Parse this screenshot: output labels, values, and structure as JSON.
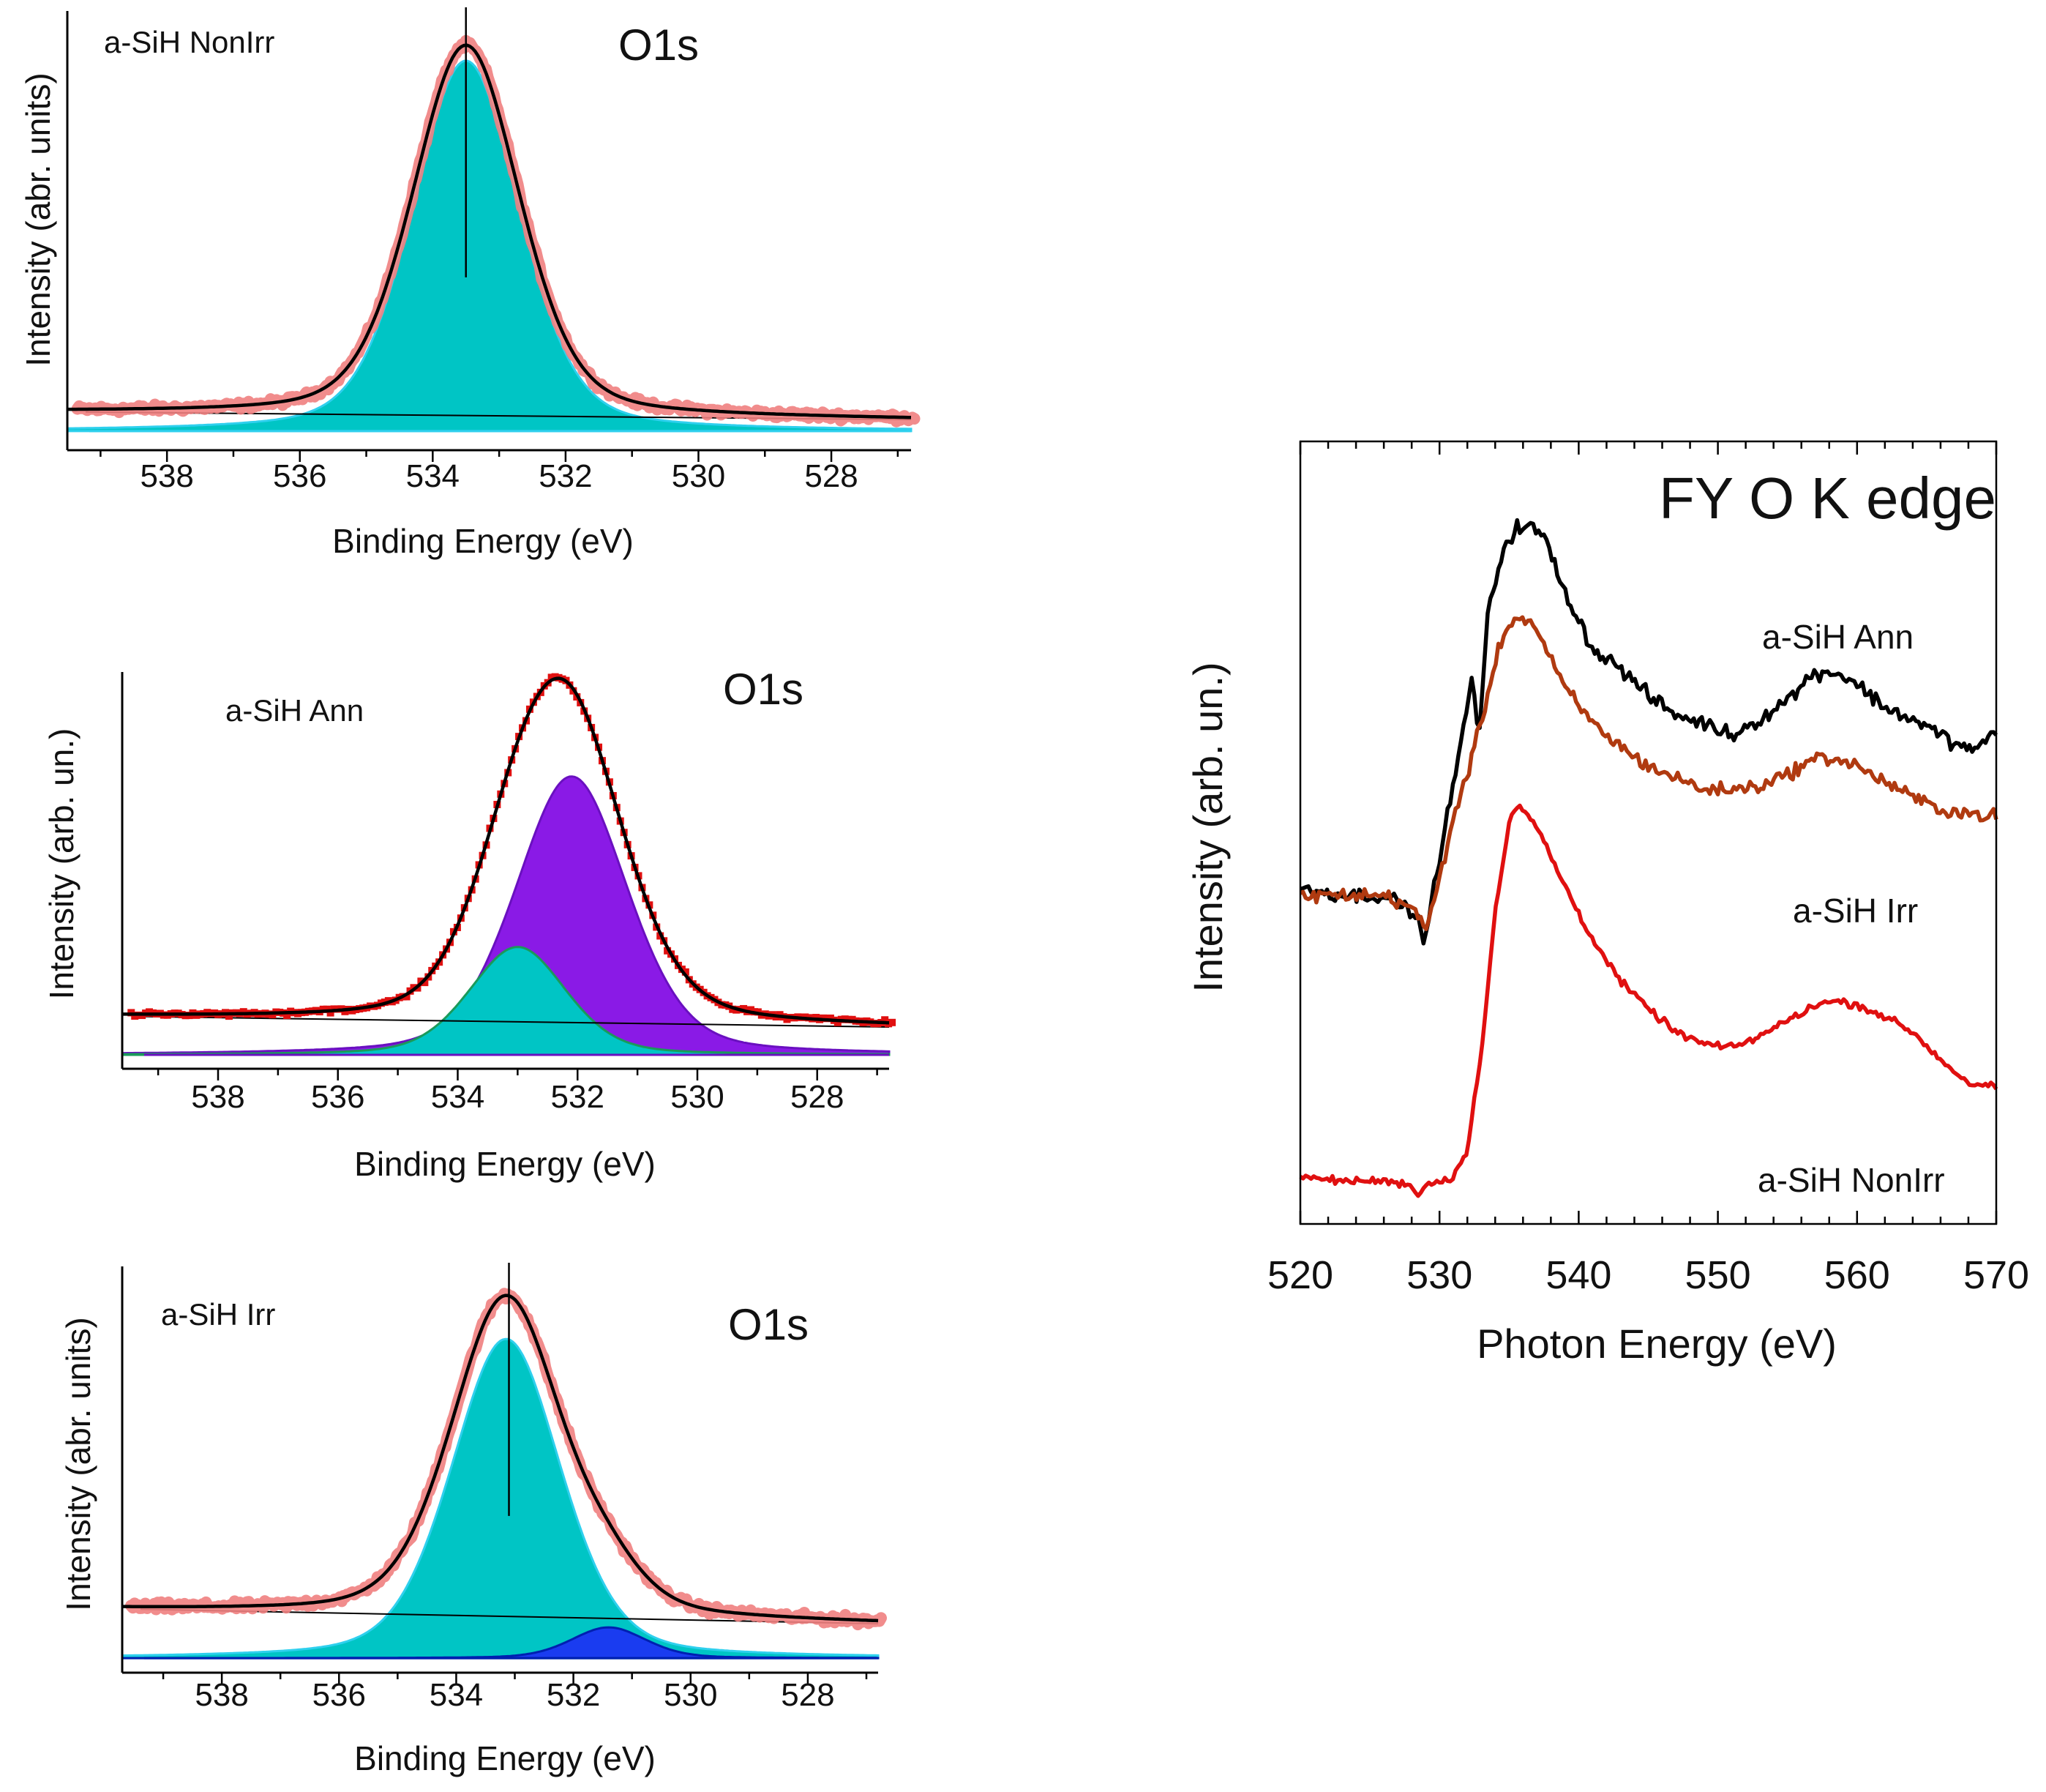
{
  "chart_data": [
    {
      "type": "line",
      "panel": "xps-nonirr",
      "title": "O1s",
      "sample": "a-SiH NonIrr",
      "xlabel": "Binding Energy (eV)",
      "ylabel": "Intensity (abr. units)",
      "xlim": [
        539.5,
        526.8
      ],
      "x_reversed": true,
      "ylim": [
        -0.05,
        1.1
      ],
      "xticks": [
        538,
        536,
        534,
        532,
        530,
        528
      ],
      "marker_line_x": 533.5,
      "background": {
        "y_left": 0.05,
        "y_right": 0.03
      },
      "components": [
        {
          "name": "O1s component",
          "center": 533.5,
          "fwhm": 1.9,
          "height": 0.97,
          "color": "#00c5c5",
          "edge": "#2fd0ee"
        }
      ],
      "fit_color": "#000000",
      "data_color": "#f08080",
      "data_noise": 0.014
    },
    {
      "type": "line",
      "panel": "xps-ann",
      "title": "O1s",
      "sample": "a-SiH Ann",
      "xlabel": "Binding Energy (eV)",
      "ylabel": "Intensity (arb. un.)",
      "xlim": [
        539.6,
        526.8
      ],
      "x_reversed": true,
      "ylim": [
        -0.04,
        1.1
      ],
      "xticks": [
        538,
        536,
        534,
        532,
        530,
        528
      ],
      "background": {
        "y_left": 0.11,
        "y_right": 0.08
      },
      "components": [
        {
          "name": "component 1",
          "center": 533.0,
          "fwhm": 1.9,
          "height": 0.31,
          "color": "#00c5c5",
          "edge": "#1a9a5a"
        },
        {
          "name": "component 2",
          "center": 532.1,
          "fwhm": 2.2,
          "height": 0.8,
          "color": "#8a1ae6",
          "edge": "#6a10c0"
        }
      ],
      "fit_color": "#000000",
      "data_color": "#e01010",
      "data_noise": 0.011
    },
    {
      "type": "line",
      "panel": "xps-irr",
      "title": "O1s",
      "sample": "a-SiH Irr",
      "xlabel": "Binding Energy (eV)",
      "ylabel": "Intensity (abr. units)",
      "xlim": [
        539.7,
        526.8
      ],
      "x_reversed": true,
      "ylim": [
        -0.04,
        1.08
      ],
      "xticks": [
        538,
        536,
        534,
        532,
        530,
        528
      ],
      "marker_line_x": 533.1,
      "background": {
        "y_left": 0.135,
        "y_right": 0.095
      },
      "components": [
        {
          "name": "component 1",
          "center": 533.15,
          "fwhm": 2.2,
          "height": 0.88,
          "color": "#00c5c5",
          "edge": "#2fd0ee"
        },
        {
          "name": "component 2",
          "center": 531.4,
          "fwhm": 1.5,
          "height": 0.085,
          "color": "#1a3cf0",
          "edge": "#0020b0"
        }
      ],
      "fit_color": "#000000",
      "data_color": "#f08080",
      "data_noise": 0.016
    },
    {
      "type": "line",
      "panel": "fy-o-k-edge",
      "title": "FY O K edge",
      "xlabel": "Photon Energy (eV)",
      "ylabel": "Intensity (arb. un.)",
      "xlim": [
        520,
        570
      ],
      "ylim": [
        0,
        10
      ],
      "xticks": [
        520,
        530,
        540,
        550,
        560,
        570
      ],
      "series": [
        {
          "name": "a-SiH Ann",
          "color": "#000000",
          "noise": 0.14,
          "x": [
            520,
            523,
            526,
            528,
            529,
            530,
            531,
            531.7,
            532.3,
            532.8,
            533.5,
            534.5,
            535.5,
            536.5,
            537.5,
            538.5,
            539.5,
            541,
            543,
            545,
            547,
            549,
            551,
            553,
            555,
            557,
            558.5,
            560,
            562,
            564,
            566,
            568,
            570
          ],
          "y": [
            4.3,
            4.2,
            4.2,
            4.0,
            3.65,
            4.7,
            5.6,
            6.3,
            7.0,
            6.2,
            7.8,
            8.6,
            8.9,
            8.9,
            8.8,
            8.3,
            7.9,
            7.35,
            7.1,
            6.75,
            6.5,
            6.4,
            6.25,
            6.45,
            6.7,
            7.05,
            7.05,
            6.9,
            6.6,
            6.45,
            6.25,
            6.05,
            6.25
          ]
        },
        {
          "name": "a-SiH Irr",
          "color": "#b03a10",
          "noise": 0.13,
          "x": [
            520,
            523,
            526,
            528,
            529,
            530,
            531,
            532,
            533,
            534,
            535,
            536,
            537,
            538,
            539,
            541,
            543,
            545,
            547,
            549,
            551,
            553,
            555,
            557,
            558.5,
            560,
            562,
            564,
            566,
            568,
            570
          ],
          "y": [
            4.2,
            4.2,
            4.2,
            4.05,
            3.75,
            4.4,
            5.2,
            5.75,
            6.4,
            7.2,
            7.7,
            7.75,
            7.6,
            7.2,
            6.85,
            6.4,
            6.1,
            5.85,
            5.7,
            5.55,
            5.55,
            5.6,
            5.75,
            5.95,
            5.95,
            5.85,
            5.65,
            5.45,
            5.3,
            5.25,
            5.2
          ]
        },
        {
          "name": "a-SiH NonIrr",
          "color": "#e01010",
          "noise": 0.07,
          "x": [
            520,
            523,
            526,
            528,
            528.5,
            529,
            530,
            531,
            532,
            533,
            534,
            535,
            535.5,
            536.5,
            537.5,
            538.5,
            539.5,
            540.5,
            541.5,
            543,
            545,
            547,
            549,
            551,
            553,
            555,
            557,
            558.5,
            560,
            562,
            564,
            566,
            568,
            570
          ],
          "y": [
            0.6,
            0.55,
            0.55,
            0.5,
            0.35,
            0.5,
            0.55,
            0.6,
            0.95,
            2.2,
            4.0,
            5.1,
            5.35,
            5.2,
            4.9,
            4.5,
            4.15,
            3.8,
            3.5,
            3.1,
            2.75,
            2.45,
            2.3,
            2.25,
            2.4,
            2.6,
            2.8,
            2.85,
            2.8,
            2.65,
            2.45,
            2.1,
            1.8,
            1.75
          ]
        }
      ],
      "labels": {
        "ann": "a-SiH Ann",
        "irr": "a-SiH Irr",
        "nonirr": "a-SiH NonIrr"
      }
    }
  ]
}
